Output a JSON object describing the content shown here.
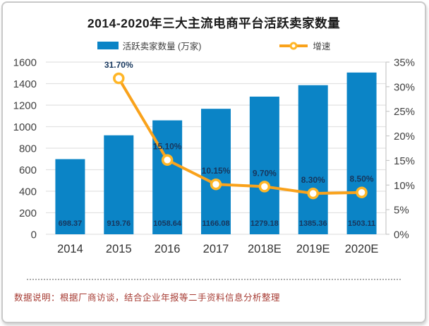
{
  "title": "2014-2020年三大主流电商平台活跃卖家数量",
  "legend": {
    "bar_label": "活跃卖家数量 (万家)",
    "line_label": "增速"
  },
  "footer": {
    "note": "数据说明：根据厂商访谈，结合企业年报等二手资料信息分析整理"
  },
  "colors": {
    "bar": "#0b84c6",
    "line": "#f9a21b",
    "marker_ring": "#ffb627",
    "marker_fill": "#ffffff",
    "data_label": "#17375e",
    "axis_text": "#404040",
    "grid": "#e2e2e2",
    "axis_line": "#c9c9c9",
    "footer_text": "#a63a32",
    "title_text": "#1a1a1a"
  },
  "chart_data": {
    "type": "bar+line combo",
    "title": "2014-2020年三大主流电商平台活跃卖家数量",
    "categories": [
      "2014",
      "2015",
      "2016",
      "2017",
      "2018E",
      "2019E",
      "2020E"
    ],
    "series": [
      {
        "name": "活跃卖家数量 (万家)",
        "type": "bar",
        "axis": "left",
        "values": [
          698.37,
          919.76,
          1058.64,
          1166.08,
          1279.18,
          1385.36,
          1503.11
        ],
        "labels": [
          "698.37",
          "919.76",
          "1058.64",
          "1166.08",
          "1279.18",
          "1385.36",
          "1503.11"
        ]
      },
      {
        "name": "增速",
        "type": "line",
        "axis": "right",
        "values": [
          null,
          31.7,
          15.1,
          10.15,
          9.7,
          8.3,
          8.5
        ],
        "labels": [
          null,
          "31.70%",
          "15.10%",
          "10.15%",
          "9.70%",
          "8.30%",
          "8.50%"
        ]
      }
    ],
    "left_axis": {
      "min": 0,
      "max": 1600,
      "step": 200,
      "ticks": [
        "0",
        "200",
        "400",
        "600",
        "800",
        "1000",
        "1200",
        "1400",
        "1600"
      ]
    },
    "right_axis": {
      "min": 0,
      "max": 35,
      "step": 5,
      "ticks": [
        "0%",
        "5%",
        "10%",
        "15%",
        "20%",
        "25%",
        "30%",
        "35%"
      ]
    },
    "grid": true,
    "legend_position": "top"
  }
}
